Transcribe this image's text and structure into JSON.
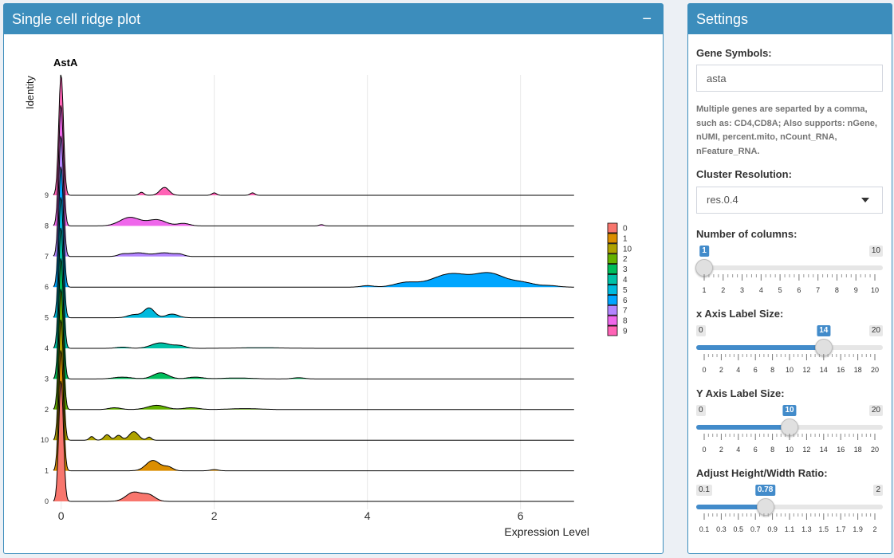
{
  "plot_panel": {
    "title": "Single cell ridge plot",
    "collapse_icon": "minus-icon"
  },
  "settings": {
    "title": "Settings",
    "gene_symbols": {
      "label": "Gene Symbols:",
      "value": "asta",
      "help": "Multiple genes are separted by a comma, such as: CD4,CD8A; Also supports: nGene, nUMI, percent.mito, nCount_RNA, nFeature_RNA."
    },
    "cluster_resolution": {
      "label": "Cluster Resolution:",
      "selected": "res.0.4"
    },
    "num_columns": {
      "label": "Number of columns:",
      "min": 1,
      "max": 10,
      "value": 1,
      "min_label": "1",
      "max_label": "10",
      "value_label": "1",
      "ticks": [
        "1",
        "2",
        "3",
        "4",
        "5",
        "6",
        "7",
        "8",
        "9",
        "10"
      ]
    },
    "x_axis_label_size": {
      "label": "x Axis Label Size:",
      "min": 0,
      "max": 20,
      "value": 14,
      "min_label": "0",
      "max_label": "20",
      "value_label": "14",
      "ticks": [
        "0",
        "2",
        "4",
        "6",
        "8",
        "10",
        "12",
        "14",
        "16",
        "18",
        "20"
      ]
    },
    "y_axis_label_size": {
      "label": "Y Axis Label Size:",
      "min": 0,
      "max": 20,
      "value": 10,
      "min_label": "0",
      "max_label": "20",
      "value_label": "10",
      "ticks": [
        "0",
        "2",
        "4",
        "6",
        "8",
        "10",
        "12",
        "14",
        "16",
        "18",
        "20"
      ]
    },
    "height_width_ratio": {
      "label": "Adjust Height/Width Ratio:",
      "min": 0.1,
      "max": 2,
      "value": 0.78,
      "min_label": "0.1",
      "max_label": "2",
      "value_label": "0.78",
      "ticks": [
        "0.1",
        "0.3",
        "0.5",
        "0.7",
        "0.9",
        "1.1",
        "1.3",
        "1.5",
        "1.7",
        "1.9",
        "2"
      ]
    }
  },
  "chart_data": {
    "type": "ridge",
    "title": "AstA",
    "xlabel": "Expression Level",
    "ylabel": "Identity",
    "xlim": [
      -0.1,
      6.9
    ],
    "x_ticks": [
      0,
      2,
      4,
      6
    ],
    "grid": true,
    "legend": {
      "position": "right",
      "entries": [
        "0",
        "1",
        "10",
        "2",
        "3",
        "4",
        "5",
        "6",
        "7",
        "8",
        "9"
      ]
    },
    "colors": {
      "0": "#F8766D",
      "1": "#DB8E00",
      "10": "#AEA200",
      "2": "#64B200",
      "3": "#00BD5C",
      "4": "#00C1A7",
      "5": "#00BADE",
      "6": "#00A6FF",
      "7": "#B385FF",
      "8": "#EF67EB",
      "9": "#FF63B6"
    },
    "ridges": [
      {
        "group": "0",
        "bumps": [
          [
            0,
            1.0,
            0.03
          ],
          [
            0.95,
            0.075,
            0.1
          ],
          [
            1.15,
            0.05,
            0.08
          ]
        ]
      },
      {
        "group": "1",
        "bumps": [
          [
            0,
            1.0,
            0.03
          ],
          [
            1.2,
            0.085,
            0.09
          ],
          [
            1.4,
            0.03,
            0.06
          ],
          [
            2.0,
            0.01,
            0.05
          ]
        ]
      },
      {
        "group": "10",
        "bumps": [
          [
            0,
            1.0,
            0.03
          ],
          [
            0.4,
            0.03,
            0.03
          ],
          [
            0.6,
            0.045,
            0.04
          ],
          [
            0.75,
            0.04,
            0.04
          ],
          [
            0.95,
            0.07,
            0.06
          ],
          [
            1.15,
            0.025,
            0.03
          ]
        ]
      },
      {
        "group": "2",
        "bumps": [
          [
            0,
            1.0,
            0.03
          ],
          [
            0.7,
            0.015,
            0.08
          ],
          [
            1.25,
            0.035,
            0.12
          ],
          [
            1.7,
            0.015,
            0.1
          ],
          [
            2.4,
            0.008,
            0.2
          ]
        ]
      },
      {
        "group": "3",
        "bumps": [
          [
            0,
            1.0,
            0.03
          ],
          [
            0.8,
            0.015,
            0.12
          ],
          [
            1.3,
            0.05,
            0.1
          ],
          [
            1.75,
            0.015,
            0.1
          ],
          [
            2.3,
            0.008,
            0.2
          ],
          [
            3.1,
            0.01,
            0.08
          ]
        ]
      },
      {
        "group": "4",
        "bumps": [
          [
            0,
            1.0,
            0.03
          ],
          [
            0.8,
            0.01,
            0.08
          ],
          [
            1.3,
            0.045,
            0.12
          ],
          [
            1.55,
            0.02,
            0.08
          ],
          [
            2.6,
            0.005,
            0.3
          ]
        ]
      },
      {
        "group": "5",
        "bumps": [
          [
            0,
            1.0,
            0.03
          ],
          [
            0.95,
            0.025,
            0.08
          ],
          [
            1.15,
            0.08,
            0.07
          ],
          [
            1.45,
            0.03,
            0.08
          ]
        ]
      },
      {
        "group": "6",
        "bumps": [
          [
            0,
            1.0,
            0.03
          ],
          [
            4.0,
            0.012,
            0.08
          ],
          [
            4.5,
            0.035,
            0.15
          ],
          [
            5.1,
            0.11,
            0.25
          ],
          [
            5.6,
            0.1,
            0.18
          ],
          [
            6.0,
            0.04,
            0.18
          ],
          [
            6.4,
            0.01,
            0.1
          ]
        ]
      },
      {
        "group": "7",
        "bumps": [
          [
            0,
            1.0,
            0.03
          ],
          [
            0.8,
            0.015,
            0.06
          ],
          [
            1.0,
            0.03,
            0.12
          ],
          [
            1.35,
            0.03,
            0.12
          ],
          [
            1.55,
            0.015,
            0.06
          ]
        ]
      },
      {
        "group": "8",
        "bumps": [
          [
            0,
            1.0,
            0.03
          ],
          [
            0.9,
            0.07,
            0.13
          ],
          [
            1.25,
            0.05,
            0.12
          ],
          [
            1.6,
            0.02,
            0.08
          ],
          [
            3.4,
            0.01,
            0.03
          ]
        ]
      },
      {
        "group": "9",
        "bumps": [
          [
            0,
            1.0,
            0.03
          ],
          [
            1.05,
            0.025,
            0.03
          ],
          [
            1.35,
            0.065,
            0.06
          ],
          [
            2.0,
            0.02,
            0.03
          ],
          [
            2.5,
            0.02,
            0.03
          ]
        ]
      }
    ]
  }
}
